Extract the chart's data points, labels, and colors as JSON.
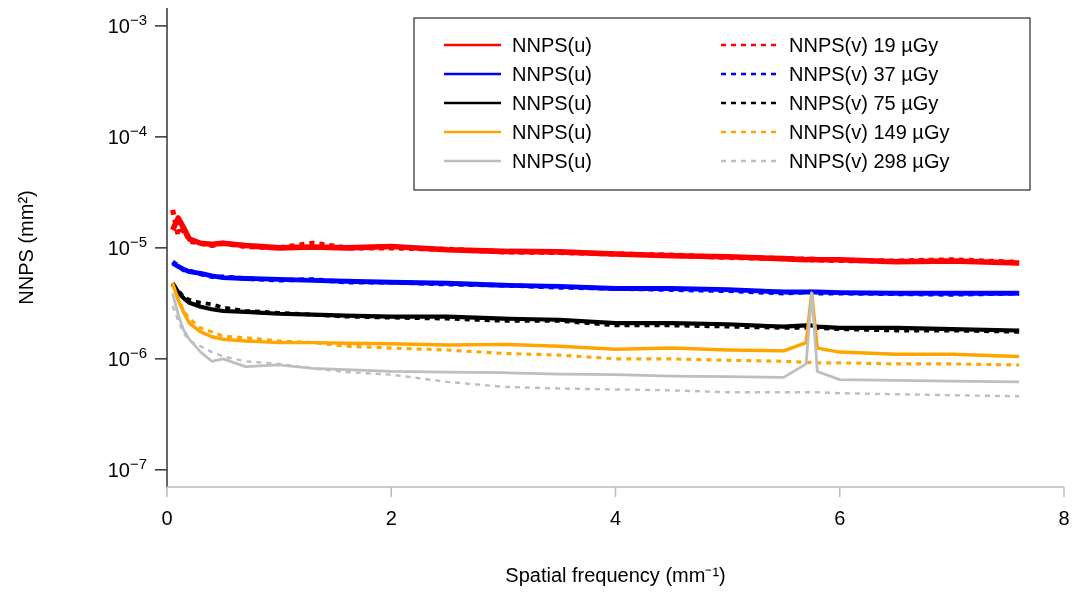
{
  "chart_data": {
    "type": "line",
    "xlabel": "Spatial frequency (mm⁻¹)",
    "ylabel": "NNPS (mm²)",
    "log": "y",
    "xlim": [
      0,
      8
    ],
    "ylim": [
      7e-08,
      0.00145
    ],
    "xticks": [
      0,
      2,
      4,
      6,
      8
    ],
    "yticks": [
      {
        "value": 1e-07,
        "label": "10$^{−7}$"
      },
      {
        "value": 1e-06,
        "label": "10$^{−6}$"
      },
      {
        "value": 1e-05,
        "label": "10$^{−5}$"
      },
      {
        "value": 0.0001,
        "label": "10$^{−4}$"
      },
      {
        "value": 0.001,
        "label": "10$^{−3}$"
      }
    ],
    "grid": false,
    "legend": "top right",
    "marker": "none",
    "x": [
      0.05,
      0.1,
      0.15,
      0.2,
      0.3,
      0.4,
      0.5,
      0.7,
      1,
      1.3,
      1.6,
      2,
      2.5,
      3,
      3.5,
      4,
      4.5,
      5,
      5.5,
      5.7,
      5.75,
      5.8,
      6,
      6.5,
      7,
      7.6
    ],
    "series": [
      {
        "name": "NNPS(u)",
        "color": "#ff0000",
        "line_style": "solid",
        "values": [
          1.45e-05,
          1.86e-05,
          1.5e-05,
          1.2e-05,
          1.1e-05,
          1.08e-05,
          1.1e-05,
          1.05e-05,
          1e-05,
          1.02e-05,
          1e-05,
          1.03e-05,
          9.6e-06,
          9.3e-06,
          9.2e-06,
          8.8e-06,
          8.5e-06,
          8.3e-06,
          8e-06,
          7.8e-06,
          7.9e-06,
          7.8e-06,
          7.8e-06,
          7.5e-06,
          7.6e-06,
          7.3e-06
        ]
      },
      {
        "name": "NNPS(v) 19 µGy",
        "color": "#ff0000",
        "line_style": "dashed",
        "values": [
          2.2e-05,
          1.3e-05,
          1.5e-05,
          1.15e-05,
          1.1e-05,
          1.05e-05,
          1.1e-05,
          1.03e-05,
          1e-05,
          1.1e-05,
          1e-05,
          1e-05,
          9.7e-06,
          9.2e-06,
          9.1e-06,
          8.8e-06,
          8.6e-06,
          8.2e-06,
          8e-06,
          7.9e-06,
          7.8e-06,
          7.8e-06,
          7.7e-06,
          7.6e-06,
          7.8e-06,
          7.4e-06
        ]
      },
      {
        "name": "NNPS(u)",
        "color": "#0000ff",
        "line_style": "solid",
        "values": [
          7.3e-06,
          6.8e-06,
          6.4e-06,
          6.1e-06,
          5.9e-06,
          5.6e-06,
          5.4e-06,
          5.3e-06,
          5.2e-06,
          5.1e-06,
          5e-06,
          4.9e-06,
          4.8e-06,
          4.6e-06,
          4.5e-06,
          4.3e-06,
          4.3e-06,
          4.2e-06,
          4e-06,
          4e-06,
          4e-06,
          4e-06,
          3.95e-06,
          3.9e-06,
          3.9e-06,
          3.9e-06
        ]
      },
      {
        "name": "NNPS(v) 37 µGy",
        "color": "#0000ff",
        "line_style": "dashed",
        "values": [
          7.5e-06,
          6.9e-06,
          6.3e-06,
          6.2e-06,
          5.8e-06,
          5.5e-06,
          5.5e-06,
          5.3e-06,
          5.1e-06,
          5.2e-06,
          4.9e-06,
          4.9e-06,
          4.7e-06,
          4.6e-06,
          4.4e-06,
          4.3e-06,
          4.2e-06,
          4.1e-06,
          3.9e-06,
          4e-06,
          4e-06,
          3.9e-06,
          3.9e-06,
          3.85e-06,
          3.8e-06,
          3.9e-06
        ]
      },
      {
        "name": "NNPS(u)",
        "color": "#000000",
        "line_style": "solid",
        "values": [
          4.8e-06,
          4e-06,
          3.5e-06,
          3.2e-06,
          2.95e-06,
          2.8e-06,
          2.7e-06,
          2.65e-06,
          2.55e-06,
          2.5e-06,
          2.45e-06,
          2.4e-06,
          2.4e-06,
          2.3e-06,
          2.25e-06,
          2.1e-06,
          2.1e-06,
          2.05e-06,
          1.95e-06,
          2e-06,
          2e-06,
          1.95e-06,
          1.9e-06,
          1.9e-06,
          1.85e-06,
          1.8e-06
        ]
      },
      {
        "name": "NNPS(v) 75 µGy",
        "color": "#000000",
        "line_style": "dashed",
        "values": [
          4.7e-06,
          4.1e-06,
          3.6e-06,
          3.4e-06,
          3.2e-06,
          3.1e-06,
          2.9e-06,
          2.7e-06,
          2.6e-06,
          2.5e-06,
          2.4e-06,
          2.35e-06,
          2.3e-06,
          2.2e-06,
          2.2e-06,
          2e-06,
          2e-06,
          1.95e-06,
          1.9e-06,
          1.9e-06,
          1.95e-06,
          1.9e-06,
          1.85e-06,
          1.8e-06,
          1.8e-06,
          1.75e-06
        ]
      },
      {
        "name": "NNPS(u)",
        "color": "#ffa500",
        "line_style": "solid",
        "values": [
          4.8e-06,
          3.4e-06,
          2.6e-06,
          2.1e-06,
          1.75e-06,
          1.58e-06,
          1.5e-06,
          1.45e-06,
          1.4e-06,
          1.4e-06,
          1.38e-06,
          1.37e-06,
          1.33e-06,
          1.35e-06,
          1.3e-06,
          1.22e-06,
          1.25e-06,
          1.2e-06,
          1.18e-06,
          1.4e-06,
          3.9e-06,
          1.25e-06,
          1.15e-06,
          1.1e-06,
          1.1e-06,
          1.05e-06
        ]
      },
      {
        "name": "NNPS(v) 149 µGy",
        "color": "#ffa500",
        "line_style": "dashed",
        "values": [
          4.6e-06,
          3.5e-06,
          2.7e-06,
          2.3e-06,
          1.9e-06,
          1.75e-06,
          1.6e-06,
          1.55e-06,
          1.45e-06,
          1.4e-06,
          1.3e-06,
          1.25e-06,
          1.2e-06,
          1.12e-06,
          1.08e-06,
          1e-06,
          1e-06,
          9.7e-07,
          9.5e-07,
          9.3e-07,
          9.3e-07,
          9.2e-07,
          9.2e-07,
          9e-07,
          9e-07,
          8.8e-07
        ]
      },
      {
        "name": "NNPS(u)",
        "color": "#bebebe",
        "line_style": "solid",
        "values": [
          3.9e-06,
          2.5e-06,
          1.8e-06,
          1.5e-06,
          1.15e-06,
          9.5e-07,
          1e-06,
          8.5e-07,
          8.8e-07,
          8.2e-07,
          8e-07,
          7.7e-07,
          7.6e-07,
          7.5e-07,
          7.3e-07,
          7.2e-07,
          7e-07,
          6.9e-07,
          6.8e-07,
          9e-07,
          3.9e-06,
          7.7e-07,
          6.5e-07,
          6.4e-07,
          6.3e-07,
          6.2e-07
        ]
      },
      {
        "name": "NNPS(v) 298 µGy",
        "color": "#bebebe",
        "line_style": "dashed",
        "values": [
          3e-06,
          2.2e-06,
          1.7e-06,
          1.45e-06,
          1.3e-06,
          1.15e-06,
          1.05e-06,
          9.5e-07,
          9e-07,
          8.2e-07,
          7.6e-07,
          7.2e-07,
          6.2e-07,
          5.6e-07,
          5.4e-07,
          5.3e-07,
          5.2e-07,
          5e-07,
          5e-07,
          5e-07,
          5e-07,
          5e-07,
          4.9e-07,
          4.8e-07,
          4.7e-07,
          4.6e-07
        ]
      }
    ]
  }
}
